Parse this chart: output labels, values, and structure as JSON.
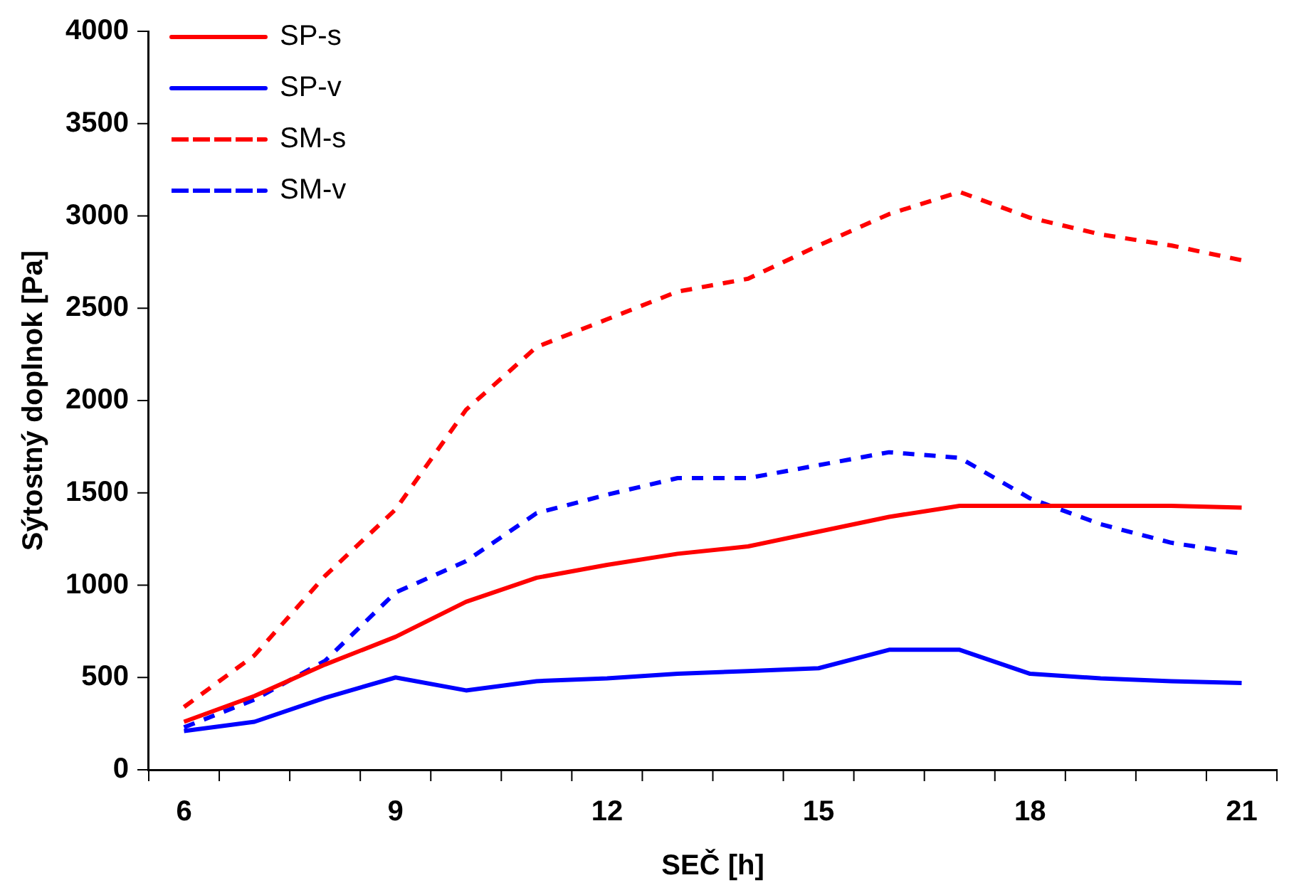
{
  "chart_data": {
    "type": "line",
    "xlabel": "SEČ [h]",
    "ylabel": "Sýtostný doplnok [Pa]",
    "categories": [
      "6",
      null,
      null,
      "9",
      null,
      null,
      "12",
      null,
      null,
      "15",
      null,
      null,
      "18",
      null,
      null,
      "21"
    ],
    "ylim": [
      0,
      4000
    ],
    "yticks": [
      0,
      500,
      1000,
      1500,
      2000,
      2500,
      3000,
      3500,
      4000
    ],
    "grid": false,
    "legend": "top left",
    "marker": "none",
    "series": [
      {
        "name": "SP-s",
        "color": "#ff0000",
        "line_style": "solid",
        "values": [
          260,
          400,
          570,
          720,
          910,
          1040,
          1110,
          1170,
          1210,
          1290,
          1370,
          1430,
          1430,
          1430,
          1430,
          1420
        ]
      },
      {
        "name": "SP-v",
        "color": "#0000ff",
        "line_style": "solid",
        "values": [
          210,
          260,
          390,
          500,
          430,
          480,
          495,
          520,
          535,
          550,
          650,
          650,
          520,
          495,
          480,
          470
        ]
      },
      {
        "name": "SM-s",
        "color": "#ff0000",
        "line_style": "dashed",
        "values": [
          340,
          620,
          1050,
          1410,
          1950,
          2290,
          2440,
          2590,
          2660,
          2840,
          3010,
          3130,
          2990,
          2900,
          2840,
          2760
        ]
      },
      {
        "name": "SM-v",
        "color": "#0000ff",
        "line_style": "dashed",
        "values": [
          230,
          380,
          590,
          960,
          1130,
          1390,
          1490,
          1580,
          1580,
          1650,
          1720,
          1690,
          1470,
          1330,
          1230,
          1170
        ]
      }
    ]
  }
}
